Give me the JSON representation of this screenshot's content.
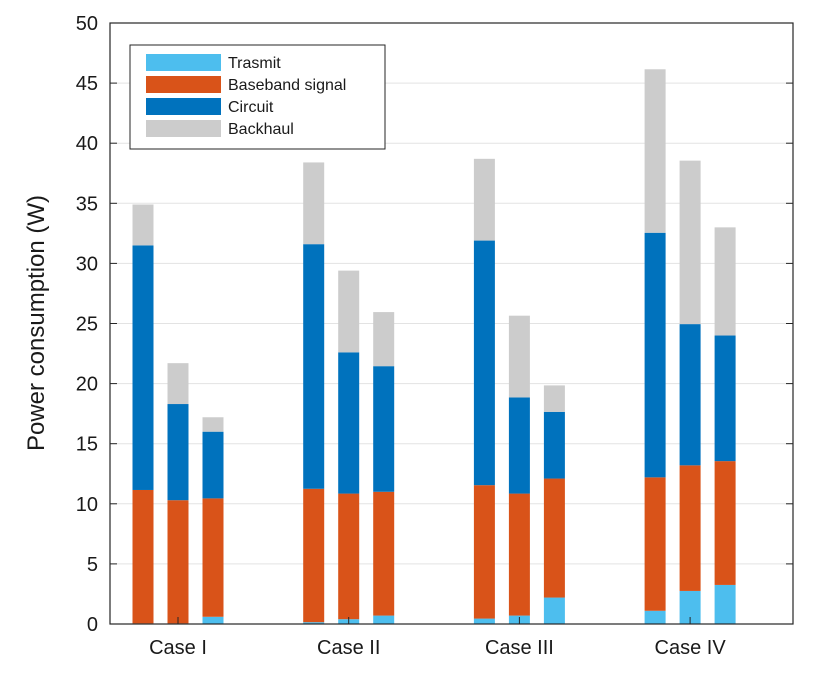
{
  "chart_data": {
    "type": "bar",
    "stacked": true,
    "categories": [
      "Case I",
      "Case II",
      "Case III",
      "Case IV"
    ],
    "bars_per_category": 3,
    "ylabel": "Power consumption (W)",
    "xlabel": "",
    "ylim": [
      0,
      50
    ],
    "yticks": [
      0,
      5,
      10,
      15,
      20,
      25,
      30,
      35,
      40,
      45,
      50
    ],
    "grid": "y-major",
    "legend_position": "top-left",
    "series": [
      {
        "name": "Trasmit",
        "color": "#4dbeee",
        "values": [
          [
            0.05,
            0.05,
            0.6
          ],
          [
            0.15,
            0.4,
            0.7
          ],
          [
            0.45,
            0.7,
            2.2
          ],
          [
            1.1,
            2.75,
            3.25
          ]
        ]
      },
      {
        "name": "Baseband signal",
        "color": "#d95319",
        "values": [
          [
            11.1,
            10.25,
            9.85
          ],
          [
            11.1,
            10.45,
            10.3
          ],
          [
            11.1,
            10.15,
            9.9
          ],
          [
            11.1,
            10.45,
            10.3
          ]
        ]
      },
      {
        "name": "Circuit",
        "color": "#0072bd",
        "values": [
          [
            20.35,
            8.0,
            5.55
          ],
          [
            20.35,
            11.75,
            10.45
          ],
          [
            20.35,
            8.0,
            5.55
          ],
          [
            20.35,
            11.75,
            10.45
          ]
        ]
      },
      {
        "name": "Backhaul",
        "color": "#cccccc",
        "values": [
          [
            3.4,
            3.4,
            1.2
          ],
          [
            6.8,
            6.8,
            4.5
          ],
          [
            6.8,
            6.8,
            2.2
          ],
          [
            13.6,
            13.6,
            9.0
          ]
        ]
      }
    ]
  }
}
